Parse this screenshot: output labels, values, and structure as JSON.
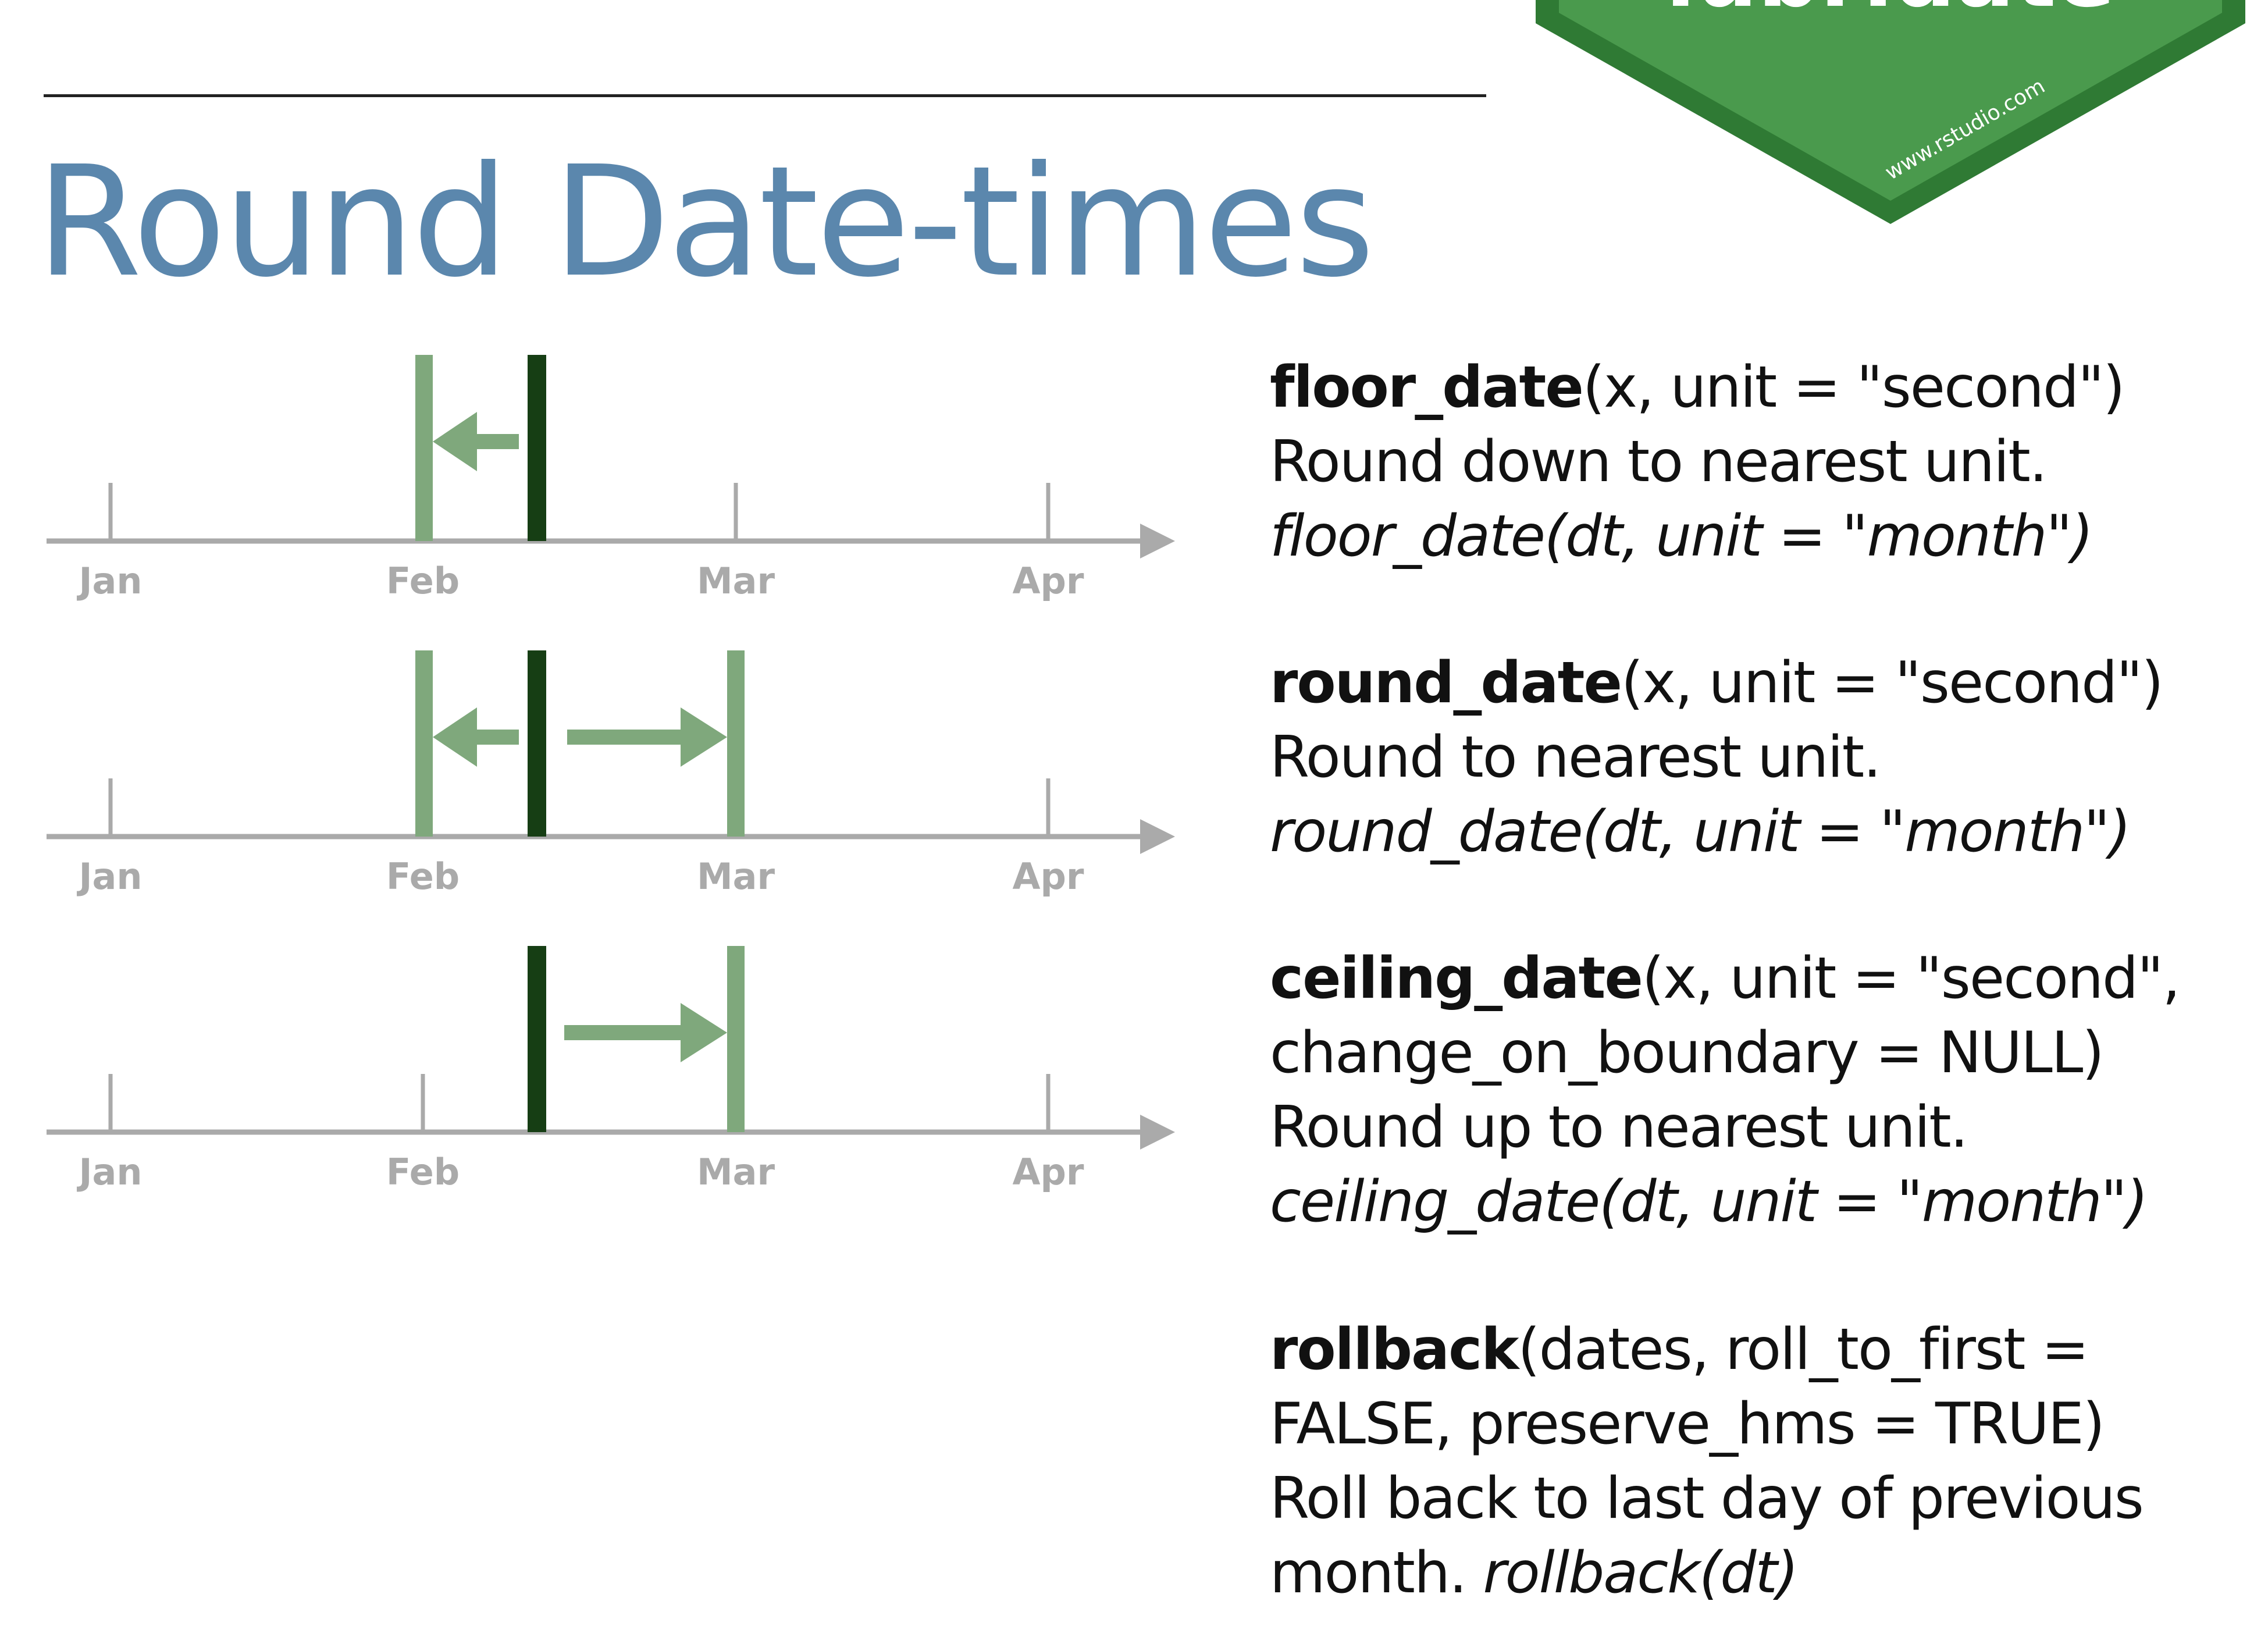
{
  "page": {
    "title": "Round Date-times",
    "badge": {
      "partial_word": "lubridate",
      "url": "www.rstudio.com"
    }
  },
  "colors": {
    "title": "#5b87ad",
    "light_green": "#7fa87c",
    "dark_green": "#163e14",
    "axis_gray": "#aaaaaa",
    "badge_fill": "#4a9a4d",
    "badge_border": "#2f7a34"
  },
  "timeline_ticks": [
    "Jan",
    "Feb",
    "Mar",
    "Apr"
  ],
  "functions": {
    "floor": {
      "name": "floor_date",
      "args": "(x, unit = \"second\")",
      "description": "Round down to nearest unit.",
      "example": "floor_date(dt, unit = \"month\")"
    },
    "round": {
      "name": "round_date",
      "args": "(x, unit = \"second\")",
      "description": "Round to nearest unit.",
      "example": "round_date(dt, unit = \"month\")"
    },
    "ceiling": {
      "name": "ceiling_date",
      "args": "(x, unit = \"second\",",
      "args_line2": "change_on_boundary = NULL)",
      "description": "Round up to nearest unit.",
      "example": "ceiling_date(dt, unit = \"month\")"
    },
    "rollback": {
      "name": "rollback",
      "args": "(dates, roll_to_first =",
      "args_line2": "FALSE, preserve_hms = TRUE)",
      "description": "Roll back to last day of previous",
      "description_line2": "month.",
      "example": "rollback(dt)"
    }
  }
}
